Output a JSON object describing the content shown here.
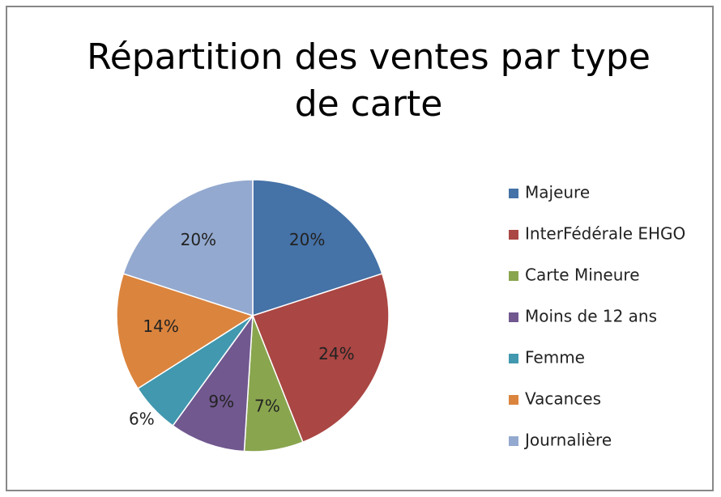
{
  "chart_data": {
    "type": "pie",
    "title": "Répartition des ventes par type de carte",
    "categories": [
      "Majeure",
      "InterFédérale EHGO",
      "Carte Mineure",
      "Moins de 12 ans",
      "Femme",
      "Vacances",
      "Journalière"
    ],
    "values": [
      20,
      24,
      7,
      9,
      6,
      14,
      20
    ],
    "value_labels": [
      "20%",
      "24%",
      "7%",
      "9%",
      "6%",
      "14%",
      "20%"
    ],
    "colors": [
      "#4572a7",
      "#aa4643",
      "#89a54e",
      "#71588f",
      "#4198af",
      "#db843d",
      "#93a9cf"
    ],
    "legend": "right"
  }
}
